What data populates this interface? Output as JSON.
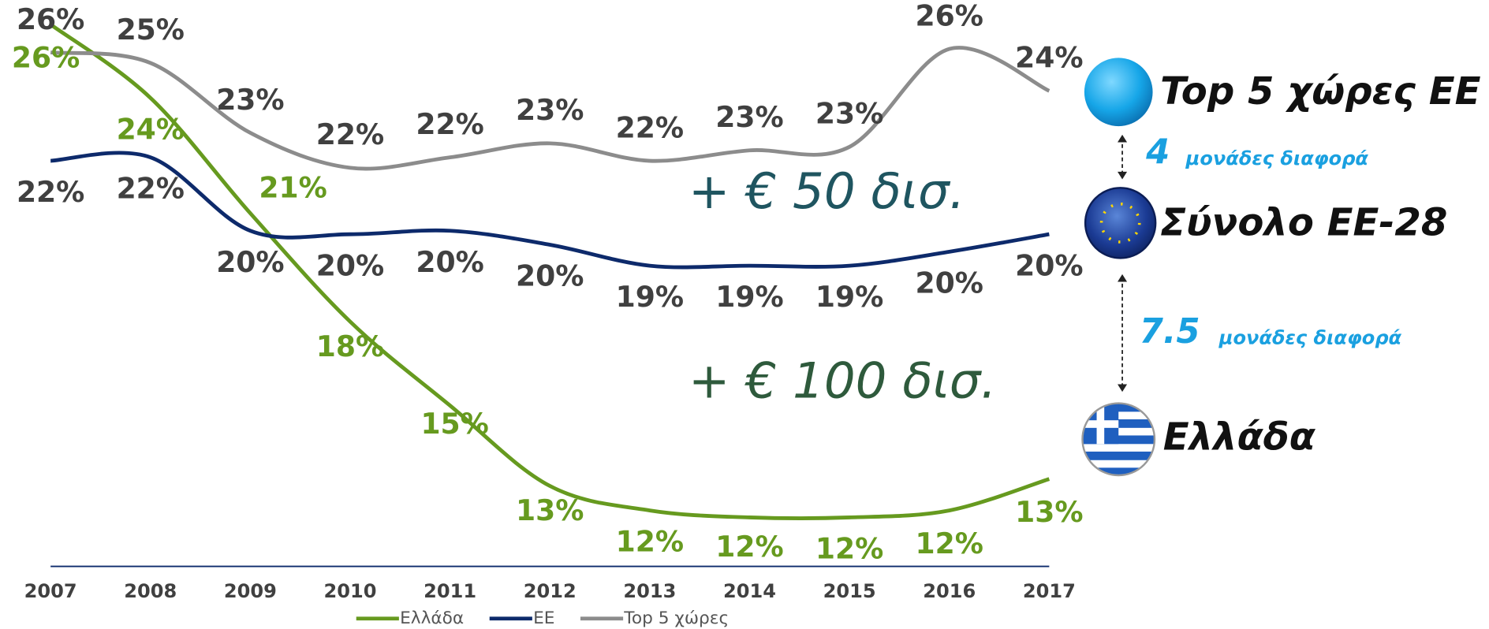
{
  "chart_data": {
    "type": "line",
    "x": [
      "2007",
      "2008",
      "2009",
      "2010",
      "2011",
      "2012",
      "2013",
      "2014",
      "2015",
      "2016",
      "2017"
    ],
    "ylim": [
      10.8,
      27
    ],
    "series": [
      {
        "name": "Ελλάδα",
        "color": "#669a1f",
        "values": [
          26.3,
          24.2,
          20.9,
          17.8,
          15.4,
          13.1,
          12.4,
          12.2,
          12.2,
          12.4,
          13.3
        ],
        "value_labels": [
          "26%",
          "24%",
          "21%",
          "18%",
          "15%",
          "13%",
          "12%",
          "12%",
          "12%",
          "12%",
          "13%"
        ]
      },
      {
        "name": "ΕΕ",
        "color": "#0d2a6b",
        "values": [
          22.4,
          22.5,
          20.4,
          20.3,
          20.4,
          20.0,
          19.4,
          19.4,
          19.4,
          19.8,
          20.3
        ],
        "value_labels": [
          "22%",
          "22%",
          "20%",
          "20%",
          "20%",
          "20%",
          "19%",
          "19%",
          "19%",
          "20%",
          "20%"
        ]
      },
      {
        "name": "Top 5 χώρες",
        "color": "#8c8c8c",
        "values": [
          25.5,
          25.2,
          23.2,
          22.2,
          22.5,
          22.9,
          22.4,
          22.7,
          22.8,
          25.6,
          24.4
        ],
        "value_labels": [
          "26%",
          "25%",
          "23%",
          "22%",
          "22%",
          "23%",
          "22%",
          "23%",
          "23%",
          "26%",
          "24%"
        ]
      }
    ],
    "annotations": [
      "+ € 50 δισ.",
      "+ € 100 δισ."
    ],
    "side_legend": {
      "top5": "Top 5 χώρες ΕΕ",
      "eu": "Σύνολο ΕΕ-28",
      "greece": "Ελλάδα",
      "gap1_number": "4",
      "gap1_text": "μονάδες διαφορά",
      "gap2_number": "7.5",
      "gap2_text": "μονάδες διαφορά"
    }
  }
}
